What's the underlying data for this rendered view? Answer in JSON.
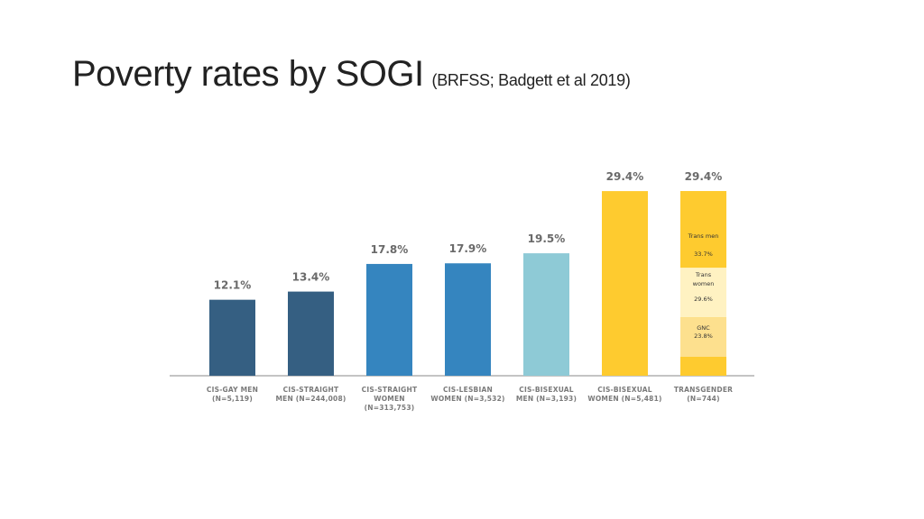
{
  "slide": {
    "title": "Poverty rates by SOGI",
    "subtitle": "(BRFSS; Badgett et al 2019)"
  },
  "chart_data": {
    "type": "bar",
    "title": "Poverty rates by SOGI",
    "categories": [
      [
        "CIS-GAY MEN",
        "(N=5,119)"
      ],
      [
        "CIS-STRAIGHT",
        "MEN (N=244,008)"
      ],
      [
        "CIS-STRAIGHT",
        "WOMEN",
        "(N=313,753)"
      ],
      [
        "CIS-LESBIAN",
        "WOMEN (N=3,532)"
      ],
      [
        "CIS-BISEXUAL",
        "MEN (N=3,193)"
      ],
      [
        "CIS-BISEXUAL",
        "WOMEN (N=5,481)"
      ],
      [
        "TRANSGENDER",
        "(N=744)"
      ]
    ],
    "values": [
      12.1,
      13.4,
      17.8,
      17.9,
      19.5,
      29.4,
      29.4
    ],
    "value_labels": [
      "12.1%",
      "13.4%",
      "17.8%",
      "17.9%",
      "19.5%",
      "29.4%",
      "29.4%"
    ],
    "colors": [
      "#355f82",
      "#355f82",
      "#3585bf",
      "#3585bf",
      "#8ecad6",
      "#fecb2f",
      "#fecb2f"
    ],
    "ylim": [
      0,
      30
    ],
    "xlabel": "",
    "ylabel": "",
    "grid": false,
    "legend": "none",
    "transgender_breakdown": [
      {
        "lines": [
          "Trans men",
          "33.7%"
        ],
        "value": 33.7,
        "color": "#fecb2f"
      },
      {
        "lines": [
          "Trans",
          "women",
          "29.6%"
        ],
        "value": 29.6,
        "color": "#fff2c2"
      },
      {
        "lines": [
          "GNC",
          "23.8%"
        ],
        "value": 23.8,
        "color": "#fde08e"
      }
    ]
  }
}
